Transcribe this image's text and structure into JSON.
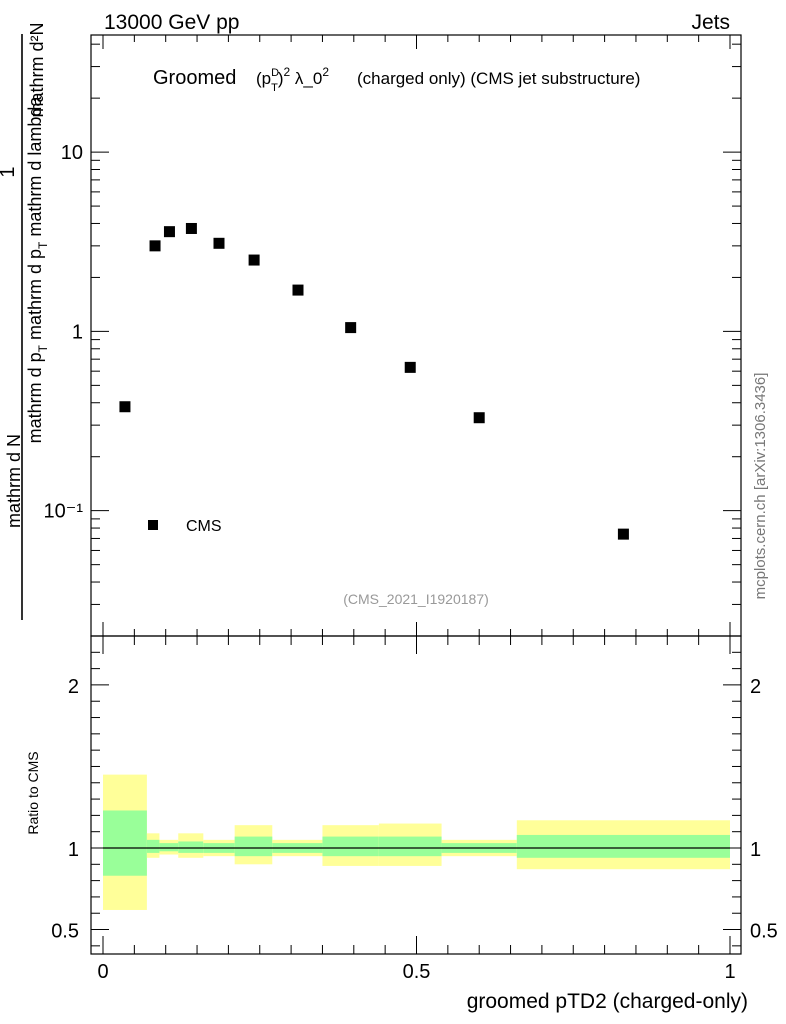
{
  "header": {
    "left": "13000 GeV pp",
    "right": "Jets"
  },
  "side_label": "mcplots.cern.ch [arXiv:1306.3436]",
  "analysis_id": "(CMS_2021_I1920187)",
  "chart_data": [
    {
      "type": "scatter",
      "title_prefix": "Groomed",
      "title_math": "(p_T^D)^2 λ_0^2",
      "title_suffix": "(charged only) (CMS jet substructure)",
      "ylabel": "1 / (mathrm d N) · mathrm d²N / (mathrm d p_T mathrm d lambda)",
      "ylabel_numerator": "mathrm d²N",
      "ylabel_denominator": "mathrm d N / mathrm d p_T mathrm d lambda",
      "y_scale": "log",
      "xlim": [
        0,
        1
      ],
      "ylim": [
        0.02,
        45
      ],
      "y_ticks": [
        {
          "value": 0.1,
          "label": "10⁻¹"
        },
        {
          "value": 1,
          "label": "1"
        },
        {
          "value": 10,
          "label": "10"
        }
      ],
      "legend_position": "bottom-left",
      "series": [
        {
          "name": "CMS",
          "color": "#000000",
          "marker": "square",
          "x": [
            0.035,
            0.083,
            0.106,
            0.141,
            0.185,
            0.241,
            0.311,
            0.395,
            0.49,
            0.6,
            0.83
          ],
          "y": [
            0.38,
            3.0,
            3.6,
            3.75,
            3.1,
            2.5,
            1.7,
            1.05,
            0.63,
            0.33,
            0.074
          ]
        }
      ]
    },
    {
      "type": "area",
      "ylabel": "Ratio to CMS",
      "xlabel": "groomed pTD2 (charged-only)",
      "xlim": [
        0,
        1
      ],
      "ylim": [
        0.35,
        2.3
      ],
      "x_ticks": [
        {
          "value": 0,
          "label": "0"
        },
        {
          "value": 0.5,
          "label": "0.5"
        },
        {
          "value": 1,
          "label": "1"
        }
      ],
      "y_ticks": [
        {
          "value": 0.5,
          "label": "0.5"
        },
        {
          "value": 1,
          "label": "1"
        },
        {
          "value": 2,
          "label": "2"
        }
      ],
      "reference_line": 1.0,
      "band_colors": {
        "stat": "#99ff99",
        "total": "#ffff99"
      },
      "bins": [
        {
          "x_low": 0.0,
          "x_high": 0.07,
          "stat_low": 0.83,
          "stat_high": 1.23,
          "total_low": 0.62,
          "total_high": 1.45
        },
        {
          "x_low": 0.07,
          "x_high": 0.09,
          "stat_low": 0.97,
          "stat_high": 1.05,
          "total_low": 0.94,
          "total_high": 1.09
        },
        {
          "x_low": 0.09,
          "x_high": 0.12,
          "stat_low": 0.98,
          "stat_high": 1.03,
          "total_low": 0.96,
          "total_high": 1.05
        },
        {
          "x_low": 0.12,
          "x_high": 0.16,
          "stat_low": 0.97,
          "stat_high": 1.04,
          "total_low": 0.94,
          "total_high": 1.09
        },
        {
          "x_low": 0.16,
          "x_high": 0.21,
          "stat_low": 0.97,
          "stat_high": 1.03,
          "total_low": 0.95,
          "total_high": 1.05
        },
        {
          "x_low": 0.21,
          "x_high": 0.27,
          "stat_low": 0.95,
          "stat_high": 1.07,
          "total_low": 0.9,
          "total_high": 1.14
        },
        {
          "x_low": 0.27,
          "x_high": 0.35,
          "stat_low": 0.97,
          "stat_high": 1.03,
          "total_low": 0.95,
          "total_high": 1.05
        },
        {
          "x_low": 0.35,
          "x_high": 0.44,
          "stat_low": 0.95,
          "stat_high": 1.07,
          "total_low": 0.89,
          "total_high": 1.14
        },
        {
          "x_low": 0.44,
          "x_high": 0.54,
          "stat_low": 0.95,
          "stat_high": 1.07,
          "total_low": 0.89,
          "total_high": 1.15
        },
        {
          "x_low": 0.54,
          "x_high": 0.66,
          "stat_low": 0.97,
          "stat_high": 1.03,
          "total_low": 0.95,
          "total_high": 1.05
        },
        {
          "x_low": 0.66,
          "x_high": 1.0,
          "stat_low": 0.94,
          "stat_high": 1.08,
          "total_low": 0.87,
          "total_high": 1.17
        }
      ]
    }
  ]
}
